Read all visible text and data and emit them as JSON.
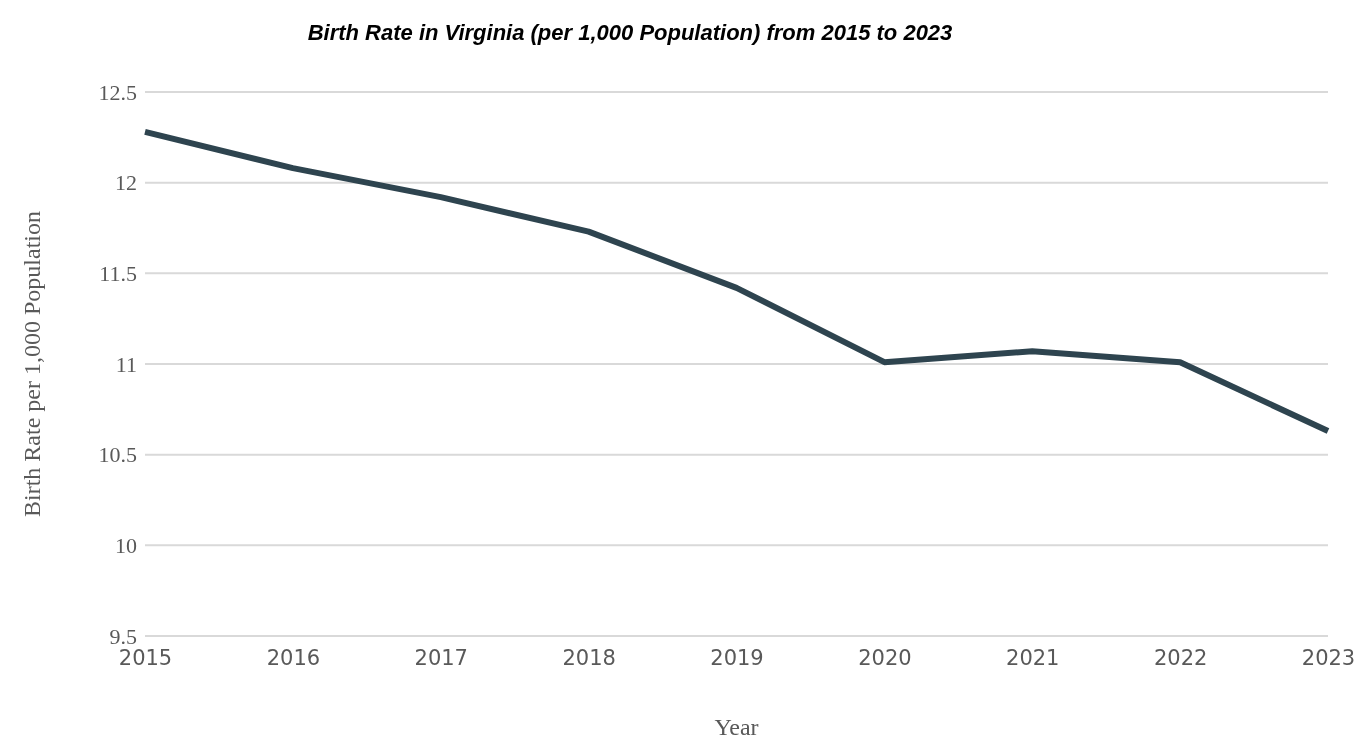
{
  "chart_data": {
    "type": "line",
    "title": "Birth Rate in Virginia (per 1,000 Population) from 2015 to 2023",
    "xlabel": "Year",
    "ylabel": "Birth Rate per 1,000 Population",
    "categories": [
      "2015",
      "2016",
      "2017",
      "2018",
      "2019",
      "2020",
      "2021",
      "2022",
      "2023"
    ],
    "series": [
      {
        "color": "#2e444f",
        "values": [
          12.28,
          12.08,
          11.92,
          11.73,
          11.42,
          11.01,
          11.07,
          11.01,
          10.63
        ]
      }
    ],
    "ylim": [
      9.5,
      12.5
    ],
    "yticks": [
      9.5,
      10,
      10.5,
      11,
      11.5,
      12,
      12.5
    ],
    "grid": "y",
    "marker": "none",
    "line_style": "solid"
  }
}
